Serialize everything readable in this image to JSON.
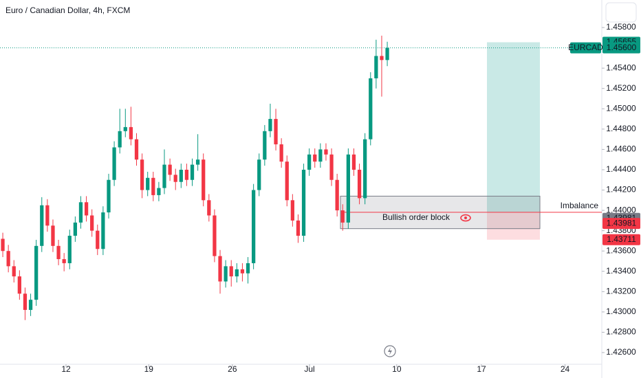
{
  "chart_data": {
    "type": "candlestick",
    "title": "Euro / Canadian Dollar, 4h, FXCM",
    "symbol": "EURCAD",
    "up_color": "#089981",
    "down_color": "#f23645",
    "open": [
      1.4372,
      1.436,
      1.4345,
      1.4335,
      1.4318,
      1.4302,
      1.4312,
      1.4365,
      1.4405,
      1.4385,
      1.4365,
      1.4352,
      1.4348,
      1.4375,
      1.4388,
      1.4408,
      1.4395,
      1.438,
      1.4362,
      1.4398,
      1.443,
      1.4462,
      1.4478,
      1.4482,
      1.447,
      1.445,
      1.442,
      1.4432,
      1.4415,
      1.4422,
      1.4445,
      1.4435,
      1.4428,
      1.444,
      1.443,
      1.4445,
      1.445,
      1.441,
      1.4395,
      1.4355,
      1.433,
      1.4345,
      1.4335,
      1.4342,
      1.4338,
      1.4348,
      1.442,
      1.445,
      1.4478,
      1.449,
      1.4465,
      1.4448,
      1.441,
      1.439,
      1.4375,
      1.444,
      1.4455,
      1.4448,
      1.446,
      1.4455,
      1.443,
      1.44,
      1.4388,
      1.4455,
      1.444,
      1.4412,
      1.447,
      1.453,
      1.4552,
      1.4548
    ],
    "high": [
      1.4378,
      1.4366,
      1.4351,
      1.4341,
      1.4324,
      1.4318,
      1.4371,
      1.4413,
      1.4411,
      1.4391,
      1.4371,
      1.4358,
      1.4381,
      1.4394,
      1.4414,
      1.4414,
      1.4401,
      1.4386,
      1.4404,
      1.4436,
      1.4468,
      1.45,
      1.45,
      1.4502,
      1.4476,
      1.4456,
      1.4438,
      1.4438,
      1.4428,
      1.446,
      1.4451,
      1.4441,
      1.4446,
      1.4446,
      1.4451,
      1.4475,
      1.4456,
      1.4416,
      1.4401,
      1.4361,
      1.4351,
      1.4351,
      1.4348,
      1.4348,
      1.4354,
      1.4426,
      1.4456,
      1.4484,
      1.4505,
      1.45,
      1.4471,
      1.4454,
      1.4416,
      1.4396,
      1.4446,
      1.4461,
      1.4461,
      1.4466,
      1.4466,
      1.4461,
      1.4436,
      1.4406,
      1.4461,
      1.4461,
      1.4446,
      1.4476,
      1.4536,
      1.4568,
      1.4572,
      1.4566
    ],
    "low": [
      1.4354,
      1.4339,
      1.4329,
      1.4312,
      1.4292,
      1.4296,
      1.4306,
      1.4359,
      1.4379,
      1.4359,
      1.4346,
      1.434,
      1.4342,
      1.4369,
      1.4382,
      1.4389,
      1.4374,
      1.4356,
      1.4356,
      1.4392,
      1.4424,
      1.4456,
      1.4472,
      1.4464,
      1.4444,
      1.4412,
      1.4414,
      1.4409,
      1.4409,
      1.4416,
      1.4429,
      1.442,
      1.4422,
      1.4424,
      1.4424,
      1.4439,
      1.4404,
      1.4389,
      1.4349,
      1.4318,
      1.4324,
      1.4325,
      1.4329,
      1.433,
      1.4328,
      1.4342,
      1.4414,
      1.4444,
      1.4472,
      1.4459,
      1.4442,
      1.4404,
      1.4384,
      1.4368,
      1.4369,
      1.4434,
      1.4442,
      1.4442,
      1.4449,
      1.4424,
      1.4394,
      1.438,
      1.4382,
      1.4434,
      1.4406,
      1.4406,
      1.4464,
      1.452,
      1.4512,
      1.4542
    ],
    "close": [
      1.436,
      1.4345,
      1.4335,
      1.4318,
      1.4302,
      1.4312,
      1.4365,
      1.4405,
      1.4385,
      1.4365,
      1.4352,
      1.4348,
      1.4375,
      1.4388,
      1.4408,
      1.4395,
      1.438,
      1.4362,
      1.4398,
      1.443,
      1.4462,
      1.4478,
      1.4482,
      1.447,
      1.445,
      1.442,
      1.4432,
      1.4415,
      1.4422,
      1.4445,
      1.4435,
      1.4428,
      1.444,
      1.443,
      1.4445,
      1.445,
      1.441,
      1.4395,
      1.4355,
      1.433,
      1.4345,
      1.4335,
      1.4342,
      1.4338,
      1.4348,
      1.442,
      1.445,
      1.4478,
      1.449,
      1.4465,
      1.4448,
      1.441,
      1.439,
      1.4375,
      1.444,
      1.4455,
      1.4448,
      1.446,
      1.4455,
      1.443,
      1.44,
      1.4388,
      1.4455,
      1.444,
      1.4412,
      1.447,
      1.453,
      1.4552,
      1.4548,
      1.456
    ],
    "xlim": [
      -0.5,
      107.5
    ],
    "xticks": [
      {
        "value": 11.35,
        "label": "12"
      },
      {
        "value": 26.2,
        "label": "19"
      },
      {
        "value": 41.2,
        "label": "26"
      },
      {
        "value": 55.05,
        "label": "Jul"
      },
      {
        "value": 70.7,
        "label": "10"
      },
      {
        "value": 85.9,
        "label": "17"
      },
      {
        "value": 100.9,
        "label": "24"
      }
    ],
    "ylim": [
      1.42485,
      1.46071
    ],
    "yticks": [
      {
        "value": 1.458,
        "label": "1.45800"
      },
      {
        "value": 1.456,
        "label": "1.45600"
      },
      {
        "value": 1.454,
        "label": "1.45400"
      },
      {
        "value": 1.452,
        "label": "1.45200"
      },
      {
        "value": 1.45,
        "label": "1.45000"
      },
      {
        "value": 1.448,
        "label": "1.44800"
      },
      {
        "value": 1.446,
        "label": "1.44600"
      },
      {
        "value": 1.444,
        "label": "1.44400"
      },
      {
        "value": 1.442,
        "label": "1.44200"
      },
      {
        "value": 1.44,
        "label": "1.44000"
      },
      {
        "value": 1.438,
        "label": "1.43800"
      },
      {
        "value": 1.436,
        "label": "1.43600"
      },
      {
        "value": 1.434,
        "label": "1.43400"
      },
      {
        "value": 1.432,
        "label": "1.43200"
      },
      {
        "value": 1.43,
        "label": "1.43000"
      },
      {
        "value": 1.428,
        "label": "1.42800"
      },
      {
        "value": 1.426,
        "label": "1.42600"
      }
    ],
    "last_price": {
      "value": 1.456,
      "label": "1.45600"
    },
    "position": {
      "target": 1.45655,
      "entry": 1.43981,
      "stop": 1.43711,
      "profit_color": "#b2dfdb",
      "loss_color": "#fcd5d8"
    },
    "zone": {
      "label": "Bullish order block",
      "top": 1.4414,
      "bottom": 1.4382
    },
    "imbalance": {
      "label": "Imbalance",
      "value": 1.43981
    }
  }
}
